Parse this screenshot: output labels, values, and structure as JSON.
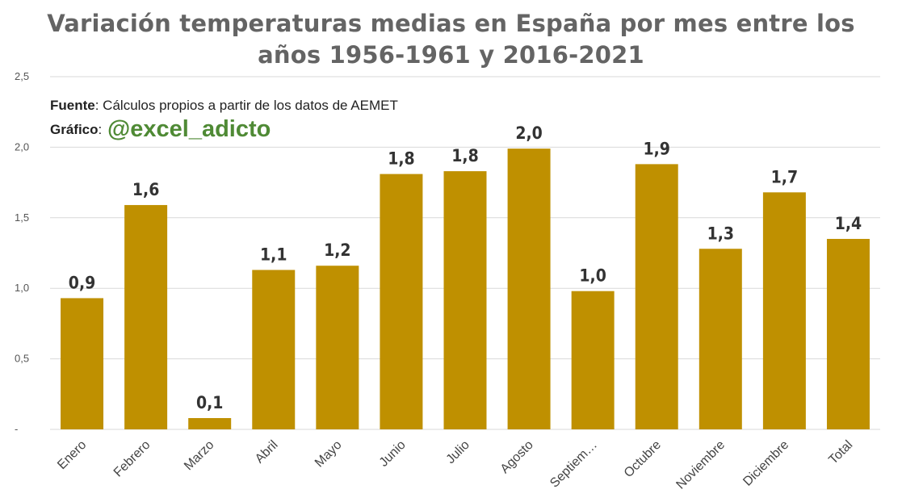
{
  "chart_data": {
    "type": "bar",
    "title_lines": [
      "Variación temperaturas medias en España por mes entre los",
      "años 1956-1961 y 2016-2021"
    ],
    "categories": [
      "Enero",
      "Febrero",
      "Marzo",
      "Abril",
      "Mayo",
      "Junio",
      "Julio",
      "Agosto",
      "Septiem…",
      "Octubre",
      "Noviembre",
      "Diciembre",
      "Total"
    ],
    "values": [
      0.93,
      1.59,
      0.08,
      1.13,
      1.16,
      1.81,
      1.83,
      1.99,
      0.98,
      1.88,
      1.28,
      1.68,
      1.35
    ],
    "data_labels": [
      "0,9",
      "1,6",
      "0,1",
      "1,1",
      "1,2",
      "1,8",
      "1,8",
      "2,0",
      "1,0",
      "1,9",
      "1,3",
      "1,7",
      "1,4"
    ],
    "yticks": [
      {
        "value": 0,
        "label": "-"
      },
      {
        "value": 0.5,
        "label": "0,5"
      },
      {
        "value": 1.0,
        "label": "1,0"
      },
      {
        "value": 1.5,
        "label": "1,5"
      },
      {
        "value": 2.0,
        "label": "2,0"
      },
      {
        "value": 2.5,
        "label": "2,5"
      }
    ],
    "ylim": [
      0,
      2.5
    ],
    "grid": true,
    "bar_color": "#bf9000",
    "xlabel": "",
    "ylabel": ""
  },
  "annotations": {
    "source_label": "Fuente",
    "source_text": ": Cálculos propios a partir de los datos de AEMET",
    "graphic_label": "Gráfico",
    "graphic_sep": ": ",
    "handle": "@excel_adicto",
    "handle_color": "#4f8a35"
  }
}
